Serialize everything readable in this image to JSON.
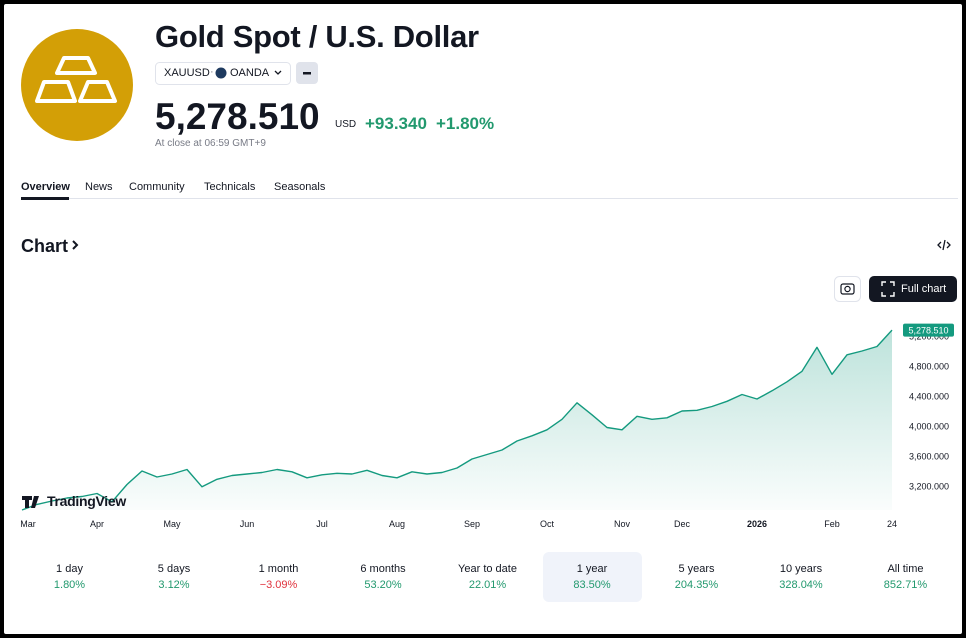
{
  "header": {
    "title": "Gold Spot / U.S. Dollar",
    "symbol": "XAUUSD",
    "exchange": "OANDA",
    "price": "5,278.510",
    "currency": "USD",
    "change": "+93.340",
    "change_percent": "+1.80%",
    "status": "At close at 06:59 GMT+9"
  },
  "tabs": [
    "Overview",
    "News",
    "Community",
    "Technicals",
    "Seasonals"
  ],
  "section_title": "Chart",
  "buttons": {
    "full_chart": "Full chart"
  },
  "watermark": "TradingView",
  "chart_data": {
    "type": "line",
    "color": "#149a7f",
    "categories": [
      "Mar",
      null,
      null,
      null,
      null,
      "Apr",
      null,
      null,
      null,
      null,
      "May",
      null,
      null,
      null,
      null,
      "Jun",
      null,
      null,
      null,
      null,
      "Jul",
      null,
      null,
      null,
      null,
      "Aug",
      null,
      null,
      null,
      null,
      "Sep",
      null,
      null,
      null,
      null,
      "Oct",
      null,
      null,
      null,
      null,
      "Nov",
      null,
      null,
      null,
      "Dec",
      null,
      null,
      null,
      null,
      "2026",
      null,
      null,
      null,
      null,
      "Feb",
      null,
      null,
      null,
      "24"
    ],
    "values": [
      2880,
      2955,
      3000,
      3040,
      3060,
      3100,
      2990,
      3220,
      3400,
      3320,
      3360,
      3420,
      3190,
      3290,
      3340,
      3360,
      3380,
      3420,
      3390,
      3310,
      3350,
      3370,
      3360,
      3410,
      3340,
      3310,
      3390,
      3360,
      3380,
      3440,
      3560,
      3620,
      3680,
      3800,
      3870,
      3950,
      4090,
      4310,
      4150,
      3980,
      3950,
      4130,
      4090,
      4110,
      4200,
      4210,
      4260,
      4330,
      4420,
      4360,
      4470,
      4590,
      4730,
      5050,
      4690,
      4950,
      5000,
      5060,
      5278.51
    ],
    "value_labels": {
      "58": "5,278.510"
    },
    "ylim": [
      2880,
      5600
    ],
    "yticks": [
      {
        "value": 3200,
        "label": "3,200.000"
      },
      {
        "value": 3600,
        "label": "3,600.000"
      },
      {
        "value": 4000,
        "label": "4,000.000"
      },
      {
        "value": 4400,
        "label": "4,400.000"
      },
      {
        "value": 4800,
        "label": "4,800.000"
      },
      {
        "value": 5200,
        "label": "5,200.000"
      }
    ]
  },
  "periods": [
    {
      "label": "1 day",
      "change": "1.80%",
      "color": "#22996e"
    },
    {
      "label": "5 days",
      "change": "3.12%",
      "color": "#22996e"
    },
    {
      "label": "1 month",
      "change": "−3.09%",
      "color": "#e0323d"
    },
    {
      "label": "6 months",
      "change": "53.20%",
      "color": "#22996e"
    },
    {
      "label": "Year to date",
      "change": "22.01%",
      "color": "#22996e"
    },
    {
      "label": "1 year",
      "change": "83.50%",
      "color": "#22996e",
      "selected": true
    },
    {
      "label": "5 years",
      "change": "204.35%",
      "color": "#22996e"
    },
    {
      "label": "10 years",
      "change": "328.04%",
      "color": "#22996e"
    },
    {
      "label": "All time",
      "change": "852.71%",
      "color": "#22996e"
    }
  ]
}
